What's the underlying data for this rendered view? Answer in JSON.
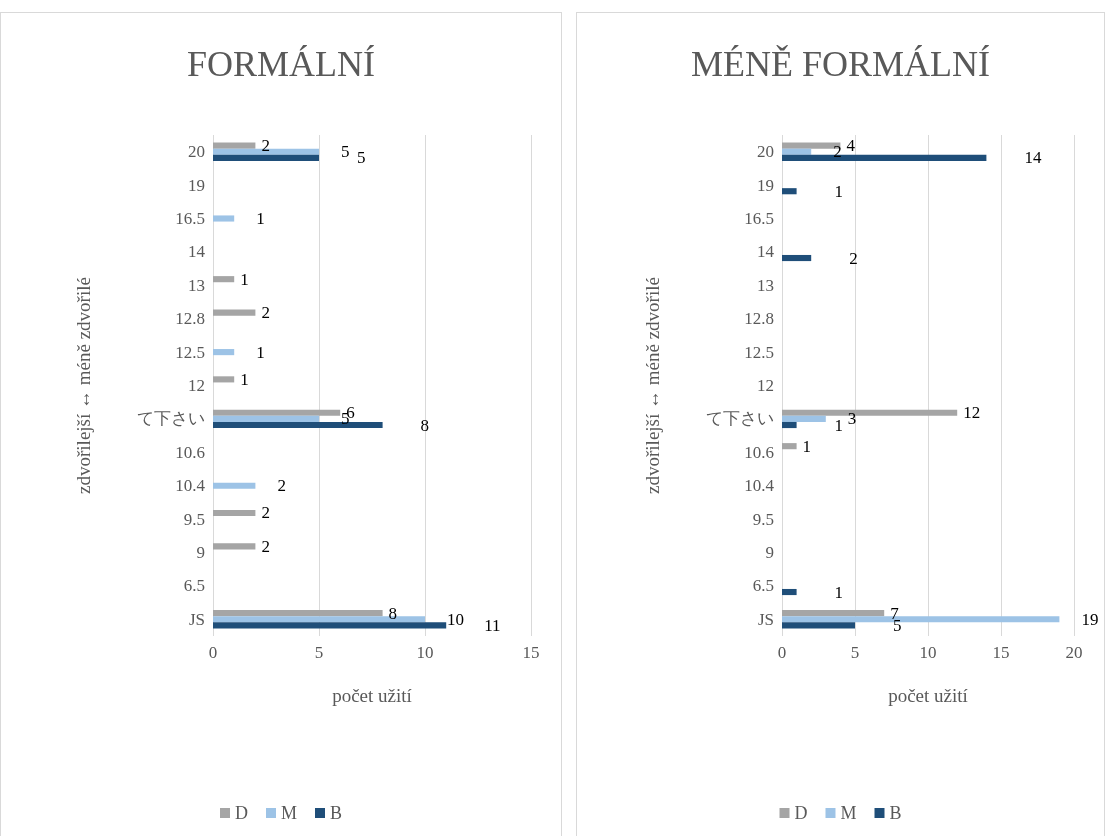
{
  "chart_data": [
    {
      "type": "bar",
      "orientation": "horizontal",
      "title": "FORMÁLNÍ",
      "xlabel": "počet užití",
      "ylabel": "zdvořilejší ↔ méně zdvořilé",
      "categories": [
        "20",
        "19",
        "16.5",
        "14",
        "13",
        "12.8",
        "12.5",
        "12",
        "て下さい",
        "10.6",
        "10.4",
        "9.5",
        "9",
        "6.5",
        "JS"
      ],
      "series": [
        {
          "name": "D",
          "color": "#a5a5a5",
          "values": [
            2,
            null,
            null,
            null,
            1,
            2,
            null,
            1,
            6,
            null,
            null,
            2,
            2,
            null,
            8
          ]
        },
        {
          "name": "M",
          "color": "#9dc3e6",
          "values": [
            5,
            null,
            1,
            null,
            null,
            null,
            1,
            null,
            5,
            null,
            2,
            null,
            null,
            null,
            10
          ]
        },
        {
          "name": "B",
          "color": "#1f4e79",
          "values": [
            5,
            null,
            null,
            null,
            null,
            null,
            null,
            null,
            8,
            null,
            null,
            null,
            null,
            null,
            11
          ]
        }
      ],
      "xlim": [
        0,
        15
      ],
      "xticks": [
        0,
        5,
        10,
        15
      ],
      "grid": "x",
      "legend": "bottom",
      "data_labels": true
    },
    {
      "type": "bar",
      "orientation": "horizontal",
      "title": "MÉNĚ FORMÁLNÍ",
      "xlabel": "počet užití",
      "ylabel": "zdvořilejší ↔ méně zdvořilé",
      "categories": [
        "20",
        "19",
        "16.5",
        "14",
        "13",
        "12.8",
        "12.5",
        "12",
        "て下さい",
        "10.6",
        "10.4",
        "9.5",
        "9",
        "6.5",
        "JS"
      ],
      "series": [
        {
          "name": "D",
          "color": "#a5a5a5",
          "values": [
            4,
            null,
            null,
            null,
            null,
            null,
            null,
            null,
            12,
            1,
            null,
            null,
            null,
            null,
            7
          ]
        },
        {
          "name": "M",
          "color": "#9dc3e6",
          "values": [
            2,
            null,
            null,
            null,
            null,
            null,
            null,
            null,
            3,
            null,
            null,
            null,
            null,
            null,
            19
          ]
        },
        {
          "name": "B",
          "color": "#1f4e79",
          "values": [
            14,
            1,
            null,
            2,
            null,
            null,
            null,
            null,
            1,
            null,
            null,
            null,
            null,
            1,
            5
          ]
        }
      ],
      "xlim": [
        0,
        20
      ],
      "xticks": [
        0,
        5,
        10,
        15,
        20
      ],
      "grid": "x",
      "legend": "bottom",
      "data_labels": true
    }
  ]
}
